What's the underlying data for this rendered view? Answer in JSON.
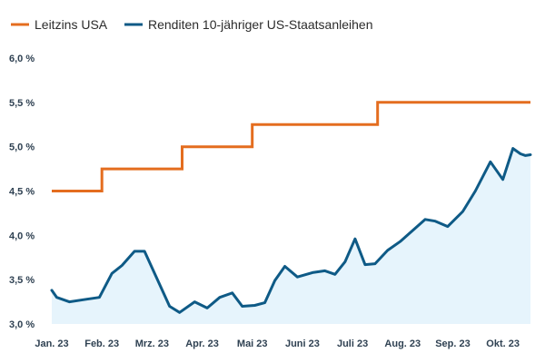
{
  "chart_data": {
    "type": "line",
    "title": "",
    "xlabel": "",
    "ylabel": "",
    "ylim": [
      3.0,
      6.0
    ],
    "yticks": [
      "3,0 %",
      "3,5 %",
      "4,0 %",
      "4,5 %",
      "5,0 %",
      "5,5 %",
      "6,0 %"
    ],
    "ytick_values": [
      3.0,
      3.5,
      4.0,
      4.5,
      5.0,
      5.5,
      6.0
    ],
    "xticks": [
      "Jan. 23",
      "Feb. 23",
      "Mrz. 23",
      "Apr. 23",
      "Mai 23",
      "Juni 23",
      "Juli 23",
      "Aug. 23",
      "Sep. 23",
      "Okt. 23"
    ],
    "xtick_months": [
      0,
      1,
      2,
      3,
      4,
      5,
      6,
      7,
      8,
      9
    ],
    "xlim_months": [
      0,
      9.55
    ],
    "legend_position": "top-left",
    "colors": {
      "policy_rate": "#e46d1f",
      "yield": "#0e5a86",
      "yield_fill": "#e6f4fc",
      "axis_text": "#2f4152"
    },
    "series": [
      {
        "name": "Leitzins USA",
        "style": "step",
        "months": [
          0.0,
          1.0,
          1.0,
          2.6,
          2.6,
          4.0,
          4.0,
          6.5,
          6.5,
          9.55
        ],
        "values": [
          4.5,
          4.5,
          4.75,
          4.75,
          5.0,
          5.0,
          5.25,
          5.25,
          5.5,
          5.5
        ]
      },
      {
        "name": "Renditen 10-jähriger US-Staatsanleihen",
        "style": "line-area",
        "months": [
          0.0,
          0.1,
          0.35,
          0.7,
          0.95,
          1.2,
          1.4,
          1.65,
          1.85,
          2.35,
          2.55,
          2.85,
          3.1,
          3.35,
          3.6,
          3.8,
          4.05,
          4.25,
          4.45,
          4.65,
          4.9,
          5.2,
          5.45,
          5.65,
          5.85,
          6.05,
          6.25,
          6.45,
          6.7,
          6.95,
          7.15,
          7.45,
          7.65,
          7.9,
          8.2,
          8.45,
          8.75,
          9.0,
          9.2,
          9.35,
          9.45,
          9.55
        ],
        "values": [
          3.38,
          3.3,
          3.25,
          3.28,
          3.3,
          3.57,
          3.66,
          3.82,
          3.82,
          3.2,
          3.13,
          3.25,
          3.18,
          3.3,
          3.35,
          3.2,
          3.21,
          3.24,
          3.49,
          3.65,
          3.53,
          3.58,
          3.6,
          3.56,
          3.7,
          3.96,
          3.67,
          3.68,
          3.83,
          3.93,
          4.03,
          4.18,
          4.16,
          4.1,
          4.27,
          4.5,
          4.83,
          4.63,
          4.98,
          4.92,
          4.9,
          4.91
        ]
      }
    ]
  }
}
